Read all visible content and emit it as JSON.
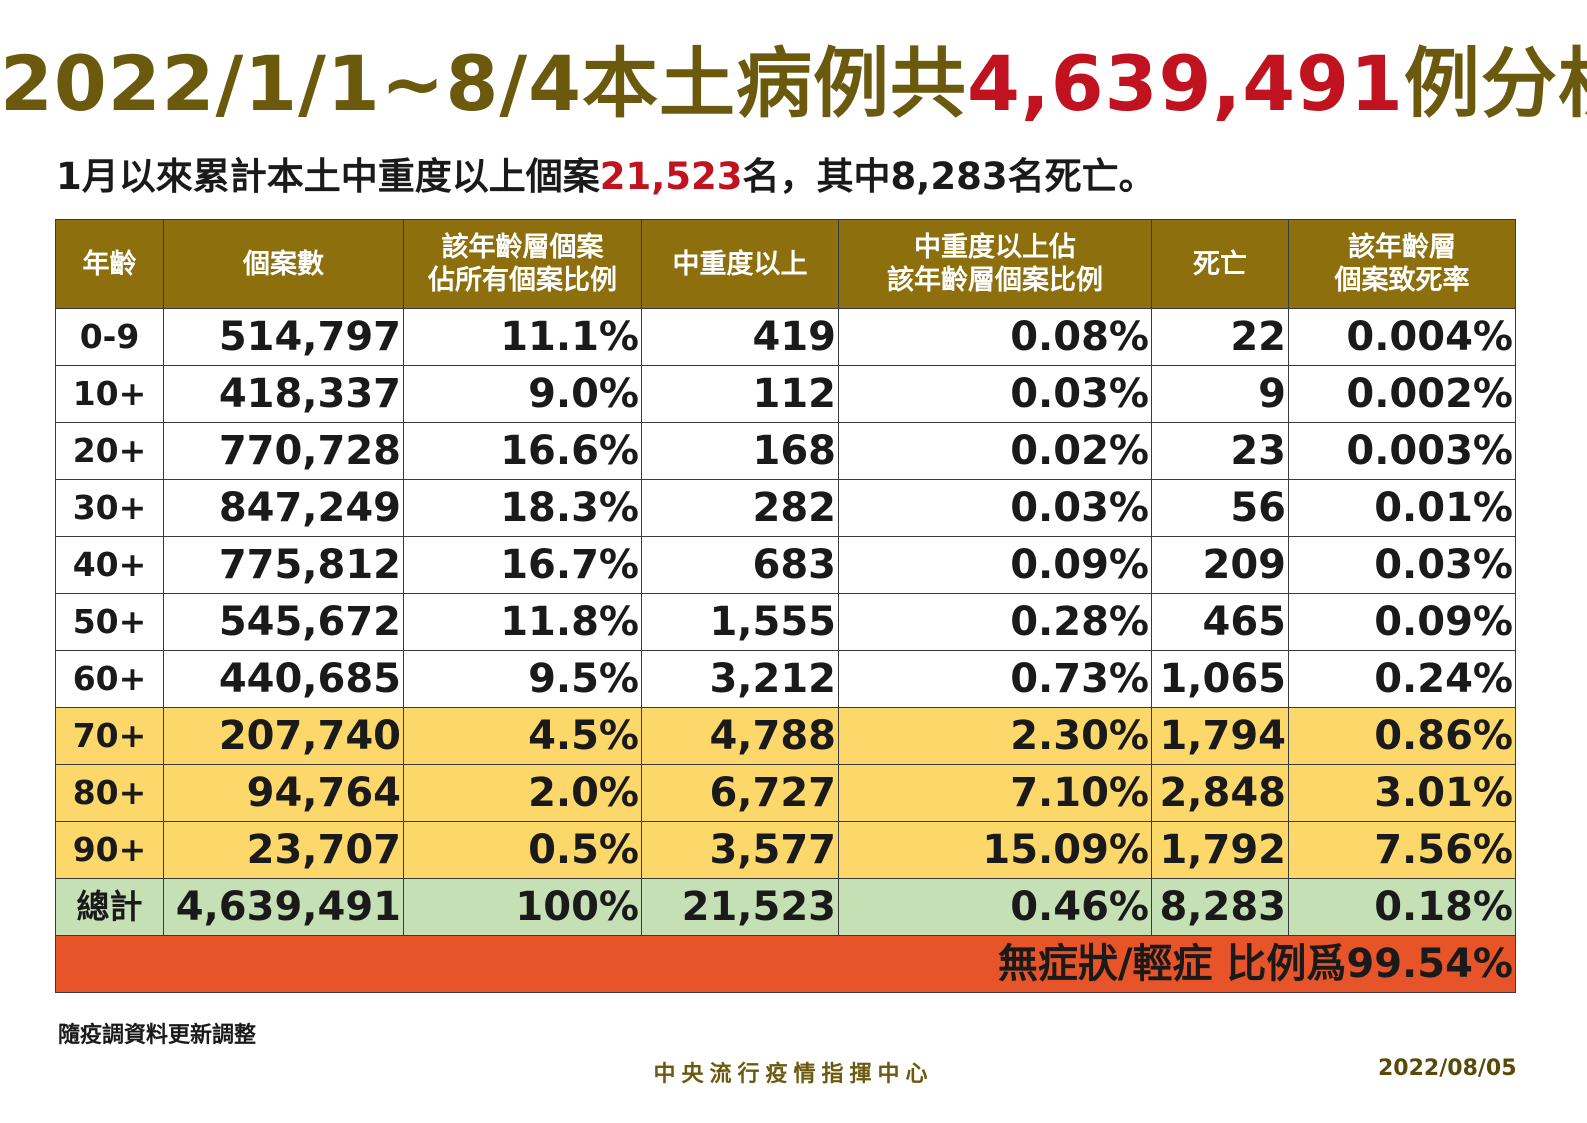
{
  "title": {
    "prefix": "2022/1/1~8/4本土病例共",
    "highlight": "4,639,491",
    "suffix": "例分析"
  },
  "subtitle": {
    "prefix": "1月以來累計本土中重度以上個案",
    "highlight": "21,523",
    "suffix": "名，其中8,283名死亡。"
  },
  "table": {
    "headers": [
      [
        "年齡"
      ],
      [
        "個案數"
      ],
      [
        "該年齡層個案",
        "佔所有個案比例"
      ],
      [
        "中重度以上"
      ],
      [
        "中重度以上佔",
        "該年齡層個案比例"
      ],
      [
        "死亡"
      ],
      [
        "該年齡層",
        "個案致死率"
      ]
    ],
    "rows": [
      [
        "0-9",
        "514,797",
        "11.1%",
        "419",
        "0.08%",
        "22",
        "0.004%"
      ],
      [
        "10+",
        "418,337",
        "9.0%",
        "112",
        "0.03%",
        "9",
        "0.002%"
      ],
      [
        "20+",
        "770,728",
        "16.6%",
        "168",
        "0.02%",
        "23",
        "0.003%"
      ],
      [
        "30+",
        "847,249",
        "18.3%",
        "282",
        "0.03%",
        "56",
        "0.01%"
      ],
      [
        "40+",
        "775,812",
        "16.7%",
        "683",
        "0.09%",
        "209",
        "0.03%"
      ],
      [
        "50+",
        "545,672",
        "11.8%",
        "1,555",
        "0.28%",
        "465",
        "0.09%"
      ],
      [
        "60+",
        "440,685",
        "9.5%",
        "3,212",
        "0.73%",
        "1,065",
        "0.24%"
      ],
      [
        "70+",
        "207,740",
        "4.5%",
        "4,788",
        "2.30%",
        "1,794",
        "0.86%"
      ],
      [
        "80+",
        "94,764",
        "2.0%",
        "6,727",
        "7.10%",
        "2,848",
        "3.01%"
      ],
      [
        "90+",
        "23,707",
        "0.5%",
        "3,577",
        "15.09%",
        "1,792",
        "7.56%"
      ]
    ],
    "total": [
      "總計",
      "4,639,491",
      "100%",
      "21,523",
      "0.46%",
      "8,283",
      "0.18%"
    ],
    "banner": "無症狀/輕症 比例爲99.54%",
    "colors": {
      "header_bg": "#8e6f0d",
      "elderly_row_bg": "#fcd86a",
      "total_row_bg": "#c6e0b5",
      "banner_bg": "#e8542a"
    }
  },
  "note": "隨疫調資料更新調整",
  "footer": {
    "org": "中央流行疫情指揮中心",
    "date": "2022/08/05"
  }
}
